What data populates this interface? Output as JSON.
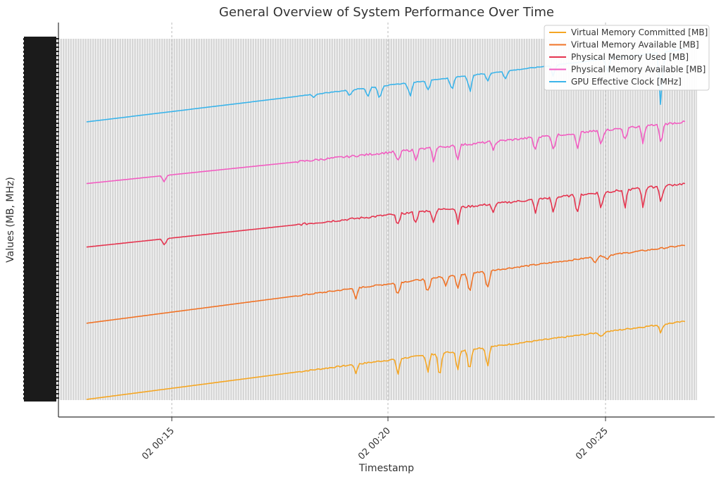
{
  "chart_data": {
    "type": "line",
    "title": "General Overview of System Performance Over Time",
    "xlabel": "Timestamp",
    "ylabel": "Values (MB, MHz)",
    "x_range": [
      "02 00:12:40",
      "02 00:27:45"
    ],
    "x_ticks": [
      "02 00:15",
      "02 00:20",
      "02 00:25"
    ],
    "grid": "dense vertical gridlines (gray background of lines)",
    "legend_position": "top-right",
    "series": [
      {
        "name": "Virtual Memory Committed [MB]",
        "color": "#f5a623",
        "start": 0.0,
        "end": 0.215,
        "noise": 0.004,
        "dips": [
          [
            0.45,
            0.03
          ],
          [
            0.52,
            0.05
          ],
          [
            0.57,
            0.06
          ],
          [
            0.59,
            0.07
          ],
          [
            0.62,
            0.06
          ],
          [
            0.64,
            0.08
          ],
          [
            0.67,
            0.07
          ],
          [
            0.86,
            0.02
          ],
          [
            0.96,
            0.03
          ]
        ]
      },
      {
        "name": "Virtual Memory Available [MB]",
        "color": "#f07327",
        "start": 0.21,
        "end": 0.425,
        "noise": 0.004,
        "dips": [
          [
            0.45,
            0.035
          ],
          [
            0.52,
            0.05
          ],
          [
            0.57,
            0.06
          ],
          [
            0.6,
            0.04
          ],
          [
            0.62,
            0.06
          ],
          [
            0.64,
            0.07
          ],
          [
            0.67,
            0.07
          ],
          [
            0.85,
            0.02
          ],
          [
            0.87,
            0.015
          ]
        ]
      },
      {
        "name": "Physical Memory Used [MB]",
        "color": "#e5344f",
        "start": 0.42,
        "end": 0.595,
        "noise": 0.006,
        "dips": [
          [
            0.13,
            0.02
          ],
          [
            0.52,
            0.04
          ],
          [
            0.55,
            0.04
          ],
          [
            0.58,
            0.05
          ],
          [
            0.62,
            0.05
          ],
          [
            0.68,
            0.03
          ],
          [
            0.75,
            0.05
          ],
          [
            0.78,
            0.06
          ],
          [
            0.82,
            0.06
          ],
          [
            0.86,
            0.06
          ],
          [
            0.9,
            0.05
          ],
          [
            0.93,
            0.06
          ],
          [
            0.96,
            0.06
          ]
        ]
      },
      {
        "name": "Physical Memory Available [MB]",
        "color": "#f25cc1",
        "start": 0.595,
        "end": 0.765,
        "noise": 0.006,
        "dips": [
          [
            0.13,
            0.02
          ],
          [
            0.52,
            0.04
          ],
          [
            0.55,
            0.04
          ],
          [
            0.58,
            0.05
          ],
          [
            0.62,
            0.05
          ],
          [
            0.68,
            0.03
          ],
          [
            0.75,
            0.05
          ],
          [
            0.78,
            0.06
          ],
          [
            0.82,
            0.06
          ],
          [
            0.86,
            0.06
          ],
          [
            0.9,
            0.05
          ],
          [
            0.93,
            0.06
          ],
          [
            0.96,
            0.06
          ]
        ]
      },
      {
        "name": "GPU Effective Clock [MHz]",
        "color": "#3bb4ea",
        "start": 0.765,
        "end": 0.965,
        "noise": 0.002,
        "dips": [
          [
            0.38,
            0.01
          ],
          [
            0.44,
            0.02
          ],
          [
            0.47,
            0.03
          ],
          [
            0.49,
            0.05
          ],
          [
            0.54,
            0.05
          ],
          [
            0.57,
            0.04
          ],
          [
            0.61,
            0.05
          ],
          [
            0.64,
            0.06
          ],
          [
            0.67,
            0.03
          ],
          [
            0.7,
            0.03
          ],
          [
            0.78,
            0.04
          ],
          [
            0.87,
            0.05
          ],
          [
            0.96,
            0.18
          ]
        ]
      }
    ]
  },
  "legend": {
    "items": [
      "Virtual Memory Committed [MB]",
      "Virtual Memory Available [MB]",
      "Physical Memory Used [MB]",
      "Physical Memory Available [MB]",
      "GPU Effective Clock [MHz]"
    ]
  }
}
